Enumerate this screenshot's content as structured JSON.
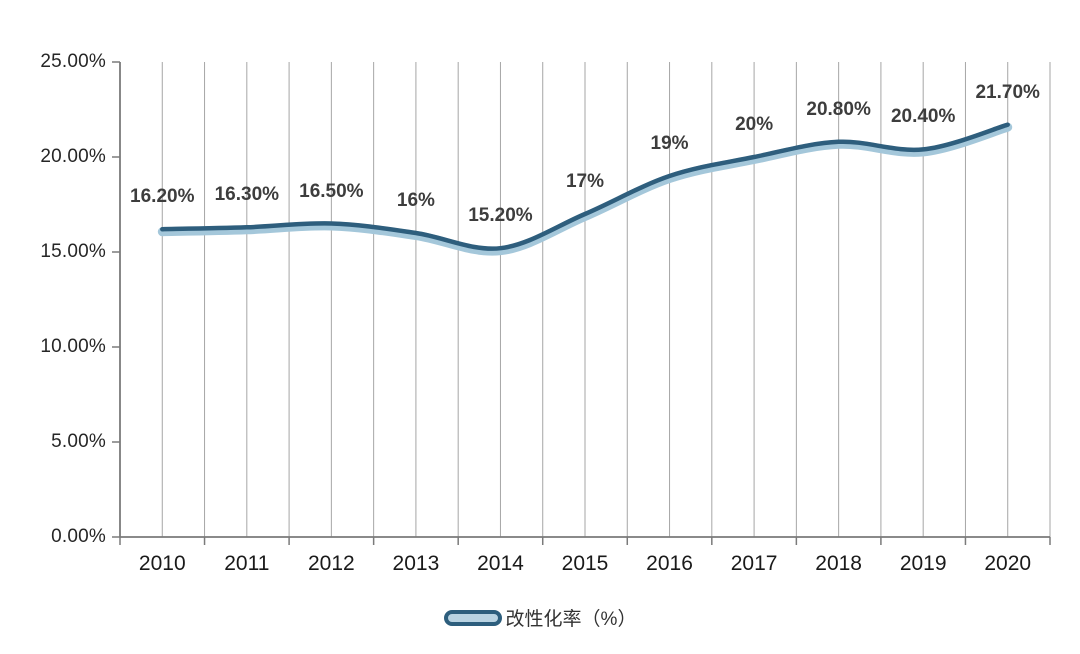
{
  "chart_data": {
    "type": "line",
    "title": "",
    "categories": [
      "2010",
      "2011",
      "2012",
      "2013",
      "2014",
      "2015",
      "2016",
      "2017",
      "2018",
      "2019",
      "2020"
    ],
    "series": [
      {
        "name": "改性化率（%）",
        "values": [
          16.2,
          16.3,
          16.5,
          16.0,
          15.2,
          17.0,
          19.0,
          20.0,
          20.8,
          20.4,
          21.7
        ],
        "point_labels": [
          "16.20%",
          "16.30%",
          "16.50%",
          "16%",
          "15.20%",
          "17%",
          "19%",
          "20%",
          "20.80%",
          "20.40%",
          "21.70%"
        ]
      }
    ],
    "xlabel": "",
    "ylabel": "",
    "ylim": [
      0,
      25
    ],
    "y_tick_labels": [
      "0.00%",
      "5.00%",
      "10.00%",
      "15.00%",
      "20.00%",
      "25.00%"
    ],
    "grid": "vertical-only",
    "smooth_line": true,
    "legend_position": "bottom-center"
  },
  "legend": {
    "label": "改性化率（%）"
  },
  "colors": {
    "line_dark": "#2e5e7d",
    "line_light": "#a4c7da",
    "gridline": "#a6a6a6",
    "axis": "#7a7a7a",
    "data_label_text": "#3d3d3d",
    "tick_text": "#262626",
    "background": "#ffffff"
  }
}
